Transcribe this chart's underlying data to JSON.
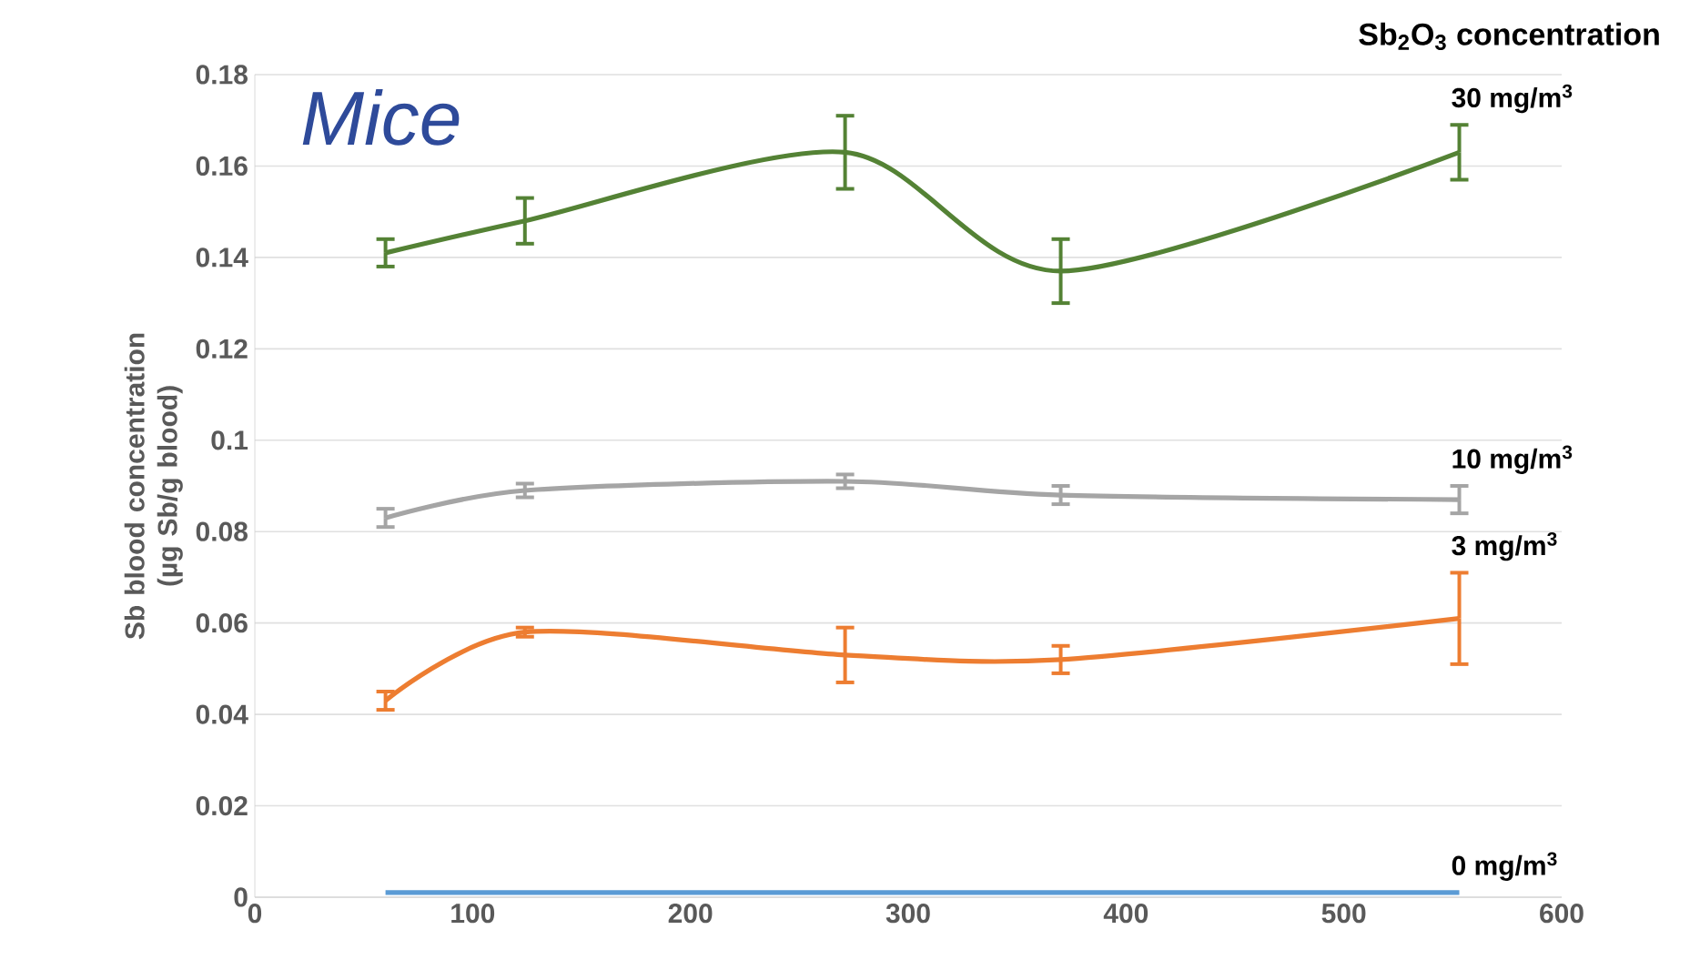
{
  "chart_data": {
    "type": "line",
    "legend_title": "Sb$_{2}$O$_{3}$ concentration",
    "ylabel": "Sb blood concentration (µg Sb/g blood)",
    "annotations": [
      "Mice"
    ],
    "x": [
      60,
      124,
      271,
      370,
      553
    ],
    "series": [
      {
        "name": "30 mg/m$^{3}$",
        "color": "#548235",
        "values": [
          0.141,
          0.148,
          0.163,
          0.137,
          0.163
        ],
        "errors": [
          0.003,
          0.005,
          0.008,
          0.007,
          0.006
        ]
      },
      {
        "name": "10 mg/m$^{3}$",
        "color": "#a5a5a5",
        "values": [
          0.083,
          0.089,
          0.091,
          0.088,
          0.087
        ],
        "errors": [
          0.002,
          0.0015,
          0.0015,
          0.002,
          0.003
        ]
      },
      {
        "name": "3 mg/m$^{3}$",
        "color": "#ed7d31",
        "values": [
          0.043,
          0.058,
          0.053,
          0.052,
          0.061
        ],
        "errors": [
          0.002,
          0.001,
          0.006,
          0.003,
          0.01
        ]
      },
      {
        "name": "0 mg/m$^{3}$",
        "color": "#5b9bd5",
        "values": [
          0.001,
          0.001,
          0.001,
          0.001,
          0.001
        ]
      }
    ],
    "xlim": [
      0,
      600
    ],
    "xticks": [
      0,
      100,
      200,
      300,
      400,
      500,
      600
    ],
    "ylim": [
      0,
      0.18
    ],
    "yticks": [
      0,
      0.02,
      0.04,
      0.06,
      0.08,
      0.1,
      0.12,
      0.14,
      0.16,
      0.18
    ],
    "grid": "y",
    "line_style": "solid"
  }
}
